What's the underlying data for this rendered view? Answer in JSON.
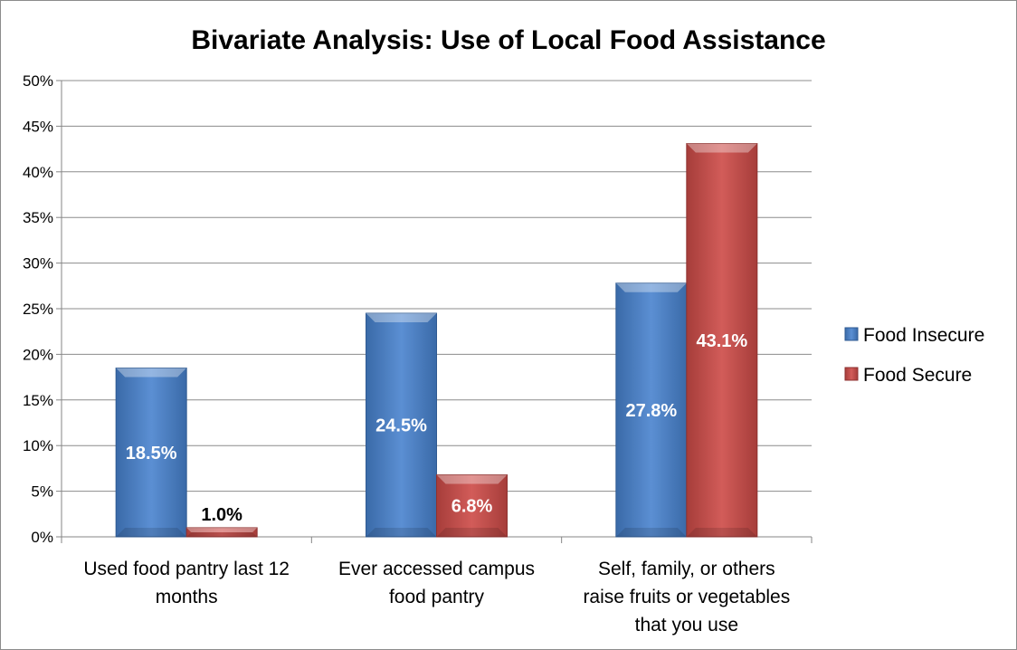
{
  "chart_data": {
    "type": "bar",
    "title": "Bivariate Analysis: Use of Local Food Assistance",
    "xlabel": "",
    "ylabel": "",
    "ylim": [
      0,
      50
    ],
    "y_ticks": [
      "0%",
      "5%",
      "10%",
      "15%",
      "20%",
      "25%",
      "30%",
      "35%",
      "40%",
      "45%",
      "50%"
    ],
    "categories": [
      [
        "Used food pantry last 12",
        "months"
      ],
      [
        "Ever accessed campus",
        "food pantry"
      ],
      [
        "Self, family, or others",
        "raise fruits or vegetables",
        "that you use"
      ]
    ],
    "series": [
      {
        "name": "Food Insecure",
        "values": [
          18.5,
          24.5,
          27.8
        ],
        "labels": [
          "18.5%",
          "24.5%",
          "27.8%"
        ],
        "color": "#4f81bd"
      },
      {
        "name": "Food Secure",
        "values": [
          1.0,
          6.8,
          43.1
        ],
        "labels": [
          "1.0%",
          "6.8%",
          "43.1%"
        ],
        "color": "#c0504d"
      }
    ],
    "grid": true,
    "legend_position": "right"
  }
}
